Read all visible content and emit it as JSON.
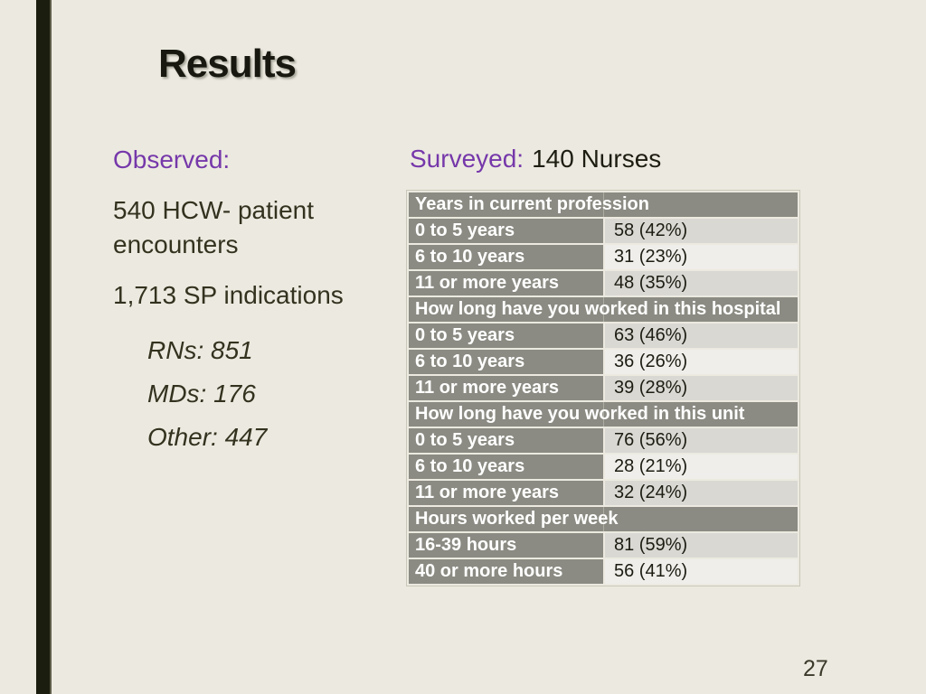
{
  "slide": {
    "title": "Results",
    "page_number": "27",
    "observed": {
      "heading": "Observed:",
      "lines": [
        "540 HCW- patient encounters",
        "1,713 SP indications"
      ],
      "sub_items": [
        "RNs: 851",
        "MDs: 176",
        "Other: 447"
      ]
    },
    "surveyed": {
      "label": "Surveyed:",
      "value": "140 Nurses"
    }
  },
  "table": {
    "sections": [
      {
        "header": "Years in current profession",
        "rows": [
          [
            "0 to 5 years",
            "58 (42%)"
          ],
          [
            "6 to 10 years",
            "31 (23%)"
          ],
          [
            "11 or more years",
            "48 (35%)"
          ]
        ]
      },
      {
        "header": "How long have you worked in this hospital",
        "rows": [
          [
            "0 to 5 years",
            "63 (46%)"
          ],
          [
            "6 to 10 years",
            "36 (26%)"
          ],
          [
            "11 or more years",
            "39 (28%)"
          ]
        ]
      },
      {
        "header": "How long have you worked in this unit",
        "rows": [
          [
            "0 to 5 years",
            "76 (56%)"
          ],
          [
            "6 to 10 years",
            "28 (21%)"
          ],
          [
            "11 or more years",
            "32 (24%)"
          ]
        ]
      },
      {
        "header": "Hours worked per week",
        "rows": [
          [
            "16-39 hours",
            "81 (59%)"
          ],
          [
            "40 or more hours",
            "56 (41%)"
          ]
        ]
      }
    ]
  },
  "colors": {
    "background": "#eceae0",
    "accent_bar": "#1b1d0e",
    "accent_bar_edge": "#5d5c47",
    "heading_purple": "#7638aa",
    "body_text": "#33321f",
    "table_gray": "#8b8b83",
    "table_band_dark": "#d9d8d3",
    "table_band_light": "#efeeea",
    "table_text_on_gray": "#ffffff"
  }
}
